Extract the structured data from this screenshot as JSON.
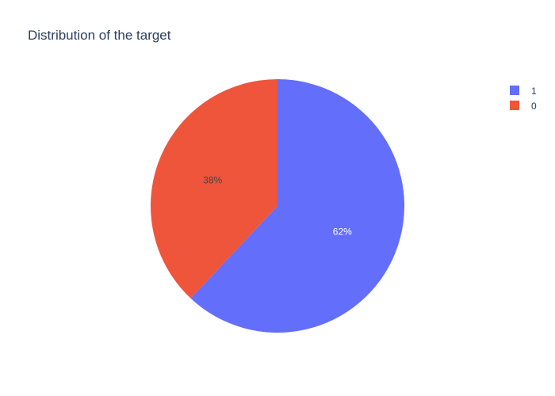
{
  "chart_data": {
    "type": "pie",
    "title": "Distribution of the target",
    "labels": [
      "1",
      "0"
    ],
    "values": [
      62,
      38
    ],
    "text_labels": [
      "62%",
      "38%"
    ],
    "colors": [
      "#636efa",
      "#ef553b"
    ],
    "label_colors": [
      "#ffffff",
      "#444444"
    ],
    "legend_placement": "top-right",
    "direction": "clockwise",
    "start_position": "top"
  }
}
